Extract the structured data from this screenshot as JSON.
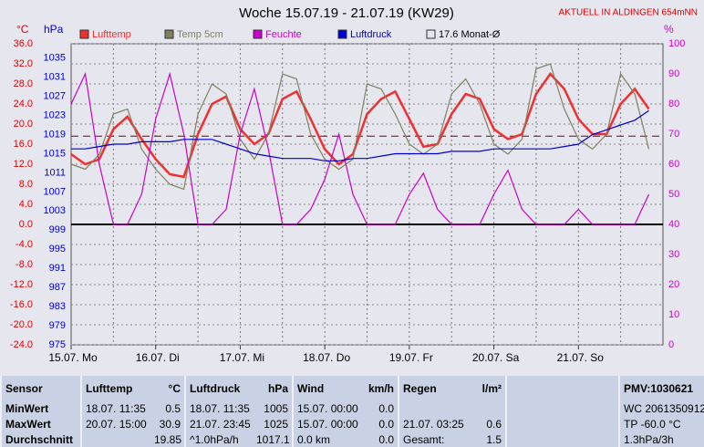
{
  "chart_data": {
    "type": "line",
    "title": "Woche 15.07.19 - 21.07.19 (KW29)",
    "subtitle": "AKTUELL IN ALDINGEN 654mNN",
    "y_label": "°C",
    "y2_label": "hPa",
    "y3_label": "%",
    "categories": [
      "15.07. Mo",
      null,
      null,
      null,
      null,
      null,
      "16.07. Di",
      null,
      null,
      null,
      null,
      null,
      "17.07. Mi",
      null,
      null,
      null,
      null,
      null,
      "18.07. Do",
      null,
      null,
      null,
      null,
      null,
      "19.07. Fr",
      null,
      null,
      null,
      null,
      null,
      "20.07. Sa",
      null,
      null,
      null,
      null,
      null,
      "21.07. So",
      null,
      null,
      null,
      null,
      null
    ],
    "series": [
      {
        "name": "Lufttemp",
        "color": "#f03030",
        "axis": "y",
        "values": [
          14,
          12,
          13,
          19,
          21.5,
          17,
          13,
          10,
          9.5,
          18,
          24,
          25.5,
          19,
          16,
          18,
          25,
          26.5,
          21,
          15,
          12,
          14,
          22,
          25,
          26.5,
          21,
          15.5,
          16,
          22,
          26,
          25,
          19,
          17,
          18,
          26,
          30,
          27,
          21,
          18,
          18,
          24,
          27,
          23
        ]
      },
      {
        "name": "Temp 5cm",
        "color": "#808060",
        "axis": "y",
        "values": [
          12,
          11,
          14,
          22,
          23,
          15,
          11,
          8,
          7,
          22,
          28,
          26,
          17,
          13,
          18,
          30,
          29,
          18,
          13,
          11,
          13,
          28,
          27,
          22,
          16,
          14,
          16,
          26,
          29,
          24,
          16,
          14,
          17,
          31,
          32,
          23,
          17,
          15,
          18,
          30,
          26,
          15
        ]
      },
      {
        "name": "Feuchte",
        "color": "#cc00cc",
        "axis": "y3",
        "values": [
          80,
          90,
          60,
          40,
          40,
          50,
          75,
          90,
          70,
          40,
          40,
          45,
          70,
          85,
          65,
          40,
          40,
          45,
          55,
          70,
          50,
          40,
          40,
          40,
          50,
          57,
          45,
          40,
          40,
          40,
          50,
          58,
          45,
          40,
          40,
          40,
          45,
          40,
          40,
          40,
          40,
          50
        ]
      },
      {
        "name": "Luftdruck",
        "color": "#0000cc",
        "axis": "y2",
        "values": [
          1016,
          1016,
          1016.5,
          1017,
          1017,
          1017.5,
          1017.5,
          1017.5,
          1018,
          1018,
          1018,
          1017,
          1016,
          1015,
          1014.5,
          1014,
          1014,
          1014,
          1013.5,
          1013.5,
          1014,
          1014,
          1014.5,
          1015,
          1015,
          1015,
          1015,
          1015.5,
          1015.5,
          1015.5,
          1016,
          1016,
          1016,
          1016,
          1016,
          1016.5,
          1017,
          1019,
          1020,
          1021,
          1022,
          1024
        ]
      }
    ],
    "reference": {
      "name": "17.6 Monat-Ø",
      "value": 17.6,
      "color": "#800000"
    },
    "ylim": [
      -24,
      36
    ],
    "yticks": [
      {
        "value": 36,
        "label": "36.0"
      },
      {
        "value": 32,
        "label": "32.0"
      },
      {
        "value": 28,
        "label": "28.0"
      },
      {
        "value": 24,
        "label": "24.0"
      },
      {
        "value": 20,
        "label": "20.0"
      },
      {
        "value": 16,
        "label": "16.0"
      },
      {
        "value": 12,
        "label": "12.0"
      },
      {
        "value": 8,
        "label": "8.0"
      },
      {
        "value": 4,
        "label": "4.0"
      },
      {
        "value": 0,
        "label": "0.0"
      },
      {
        "value": -4,
        "label": "-4.0"
      },
      {
        "value": -8,
        "label": "-8.0"
      },
      {
        "value": -12,
        "label": "-12.0"
      },
      {
        "value": -16,
        "label": "-16.0"
      },
      {
        "value": -20,
        "label": "-20.0"
      },
      {
        "value": -24,
        "label": "-24.0"
      }
    ],
    "y2lim": [
      975,
      1038
    ],
    "y2ticks": [
      1035,
      1031,
      1027,
      1023,
      1019,
      1015,
      1011,
      1007,
      1003,
      999,
      995,
      991,
      987,
      983,
      979,
      975
    ],
    "y3lim": [
      0,
      100
    ],
    "y3ticks": [
      100,
      90,
      80,
      70,
      60,
      50,
      40,
      30,
      20,
      10,
      0
    ],
    "grid": true
  },
  "stats_table": {
    "header": {
      "label": "Sensor",
      "temp": "Lufttemp",
      "temp_unit": "°C",
      "press": "Luftdruck",
      "press_unit": "hPa",
      "wind": "Wind",
      "wind_unit": "km/h",
      "rain": "Regen",
      "rain_unit": "l/m²",
      "extra": "PMV:1030621"
    },
    "rows": [
      {
        "label": "MinWert",
        "temp_time": "18.07. 11:35",
        "temp": "0.5",
        "press_time": "18.07. 11:35",
        "press": "1005",
        "wind_time": "15.07. 00:00",
        "wind": "0.0",
        "extra": "WC 2061350912"
      },
      {
        "label": "MaxWert",
        "temp_time": "20.07. 15:00",
        "temp": "30.9",
        "press_time": "21.07. 23:45",
        "press": "1025",
        "wind_time": "15.07. 00:00",
        "wind": "0.0",
        "rain_time": "21.07. 03:25",
        "rain": "0.6",
        "extra": "TP -60.0 °C"
      },
      {
        "label": "Durchschnitt",
        "temp": "19.85",
        "press_time": "^1.0hPa/h",
        "press": "1017.1",
        "wind_time": "0.0 km",
        "wind": "0.0",
        "rain_time": "Gesamt:",
        "rain": "1.5",
        "extra": "1.3hPa/3h"
      }
    ]
  }
}
